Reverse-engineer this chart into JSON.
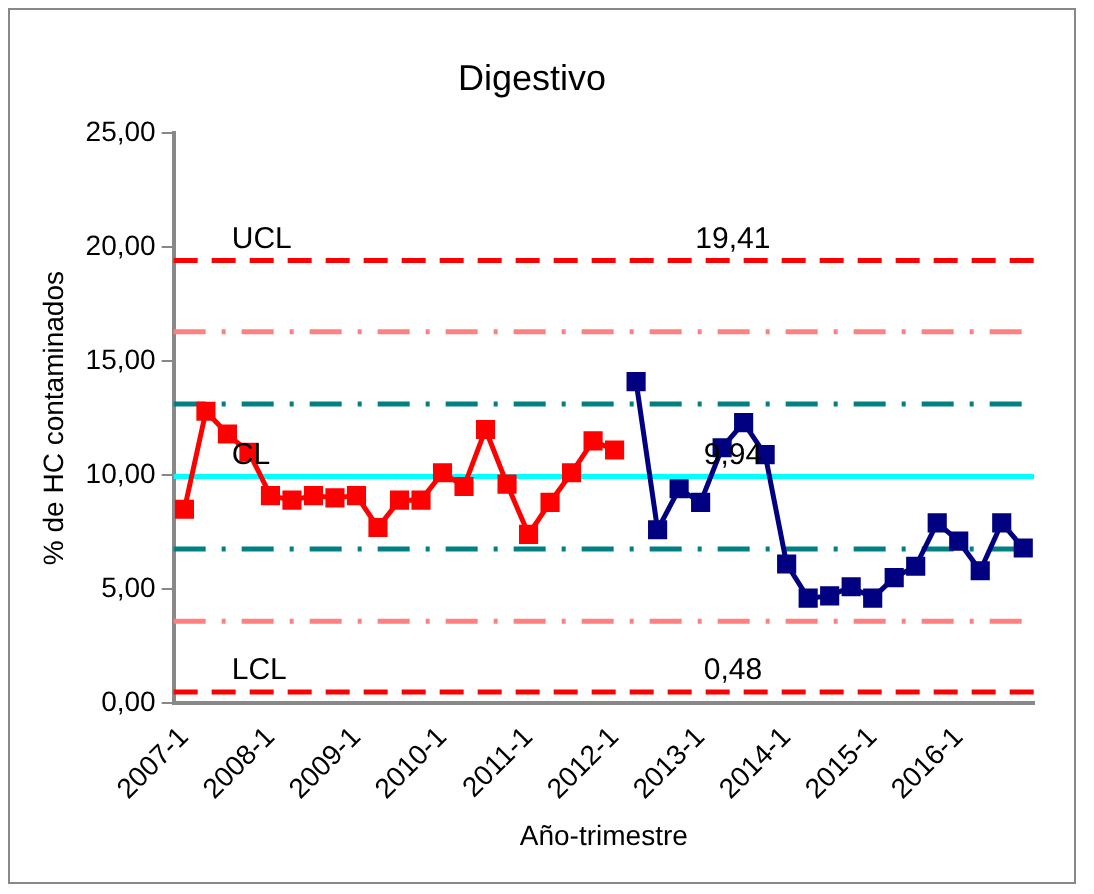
{
  "chart_data": {
    "type": "line",
    "title": "Digestivo",
    "xlabel": "Año-trimestre",
    "ylabel": "% de HC contaminados",
    "categories": [
      "2007-1",
      null,
      null,
      null,
      "2008-1",
      null,
      null,
      null,
      "2009-1",
      null,
      null,
      null,
      "2010-1",
      null,
      null,
      null,
      "2011-1",
      null,
      null,
      null,
      "2012-1",
      null,
      null,
      null,
      "2013-1",
      null,
      null,
      null,
      "2014-1",
      null,
      null,
      null,
      "2015-1",
      null,
      null,
      null,
      "2016-1",
      null,
      null,
      null
    ],
    "series": [
      {
        "color": "#ff0000",
        "values": [
          8.5,
          12.8,
          11.8,
          11.0,
          9.1,
          8.9,
          9.1,
          9.0,
          9.1,
          7.7,
          8.9,
          8.9,
          10.1,
          9.5,
          12.0,
          9.6,
          7.4,
          8.8,
          10.1,
          11.5,
          11.1,
          null,
          null,
          null,
          null,
          null,
          null,
          null,
          null,
          null,
          null,
          null,
          null,
          null,
          null,
          null,
          null,
          null,
          null,
          null
        ]
      },
      {
        "color": "#000080",
        "values": [
          null,
          null,
          null,
          null,
          null,
          null,
          null,
          null,
          null,
          null,
          null,
          null,
          null,
          null,
          null,
          null,
          null,
          null,
          null,
          null,
          null,
          14.1,
          7.6,
          9.4,
          8.8,
          11.2,
          12.3,
          10.9,
          6.1,
          4.6,
          4.7,
          5.1,
          4.6,
          5.5,
          6.0,
          7.9,
          7.1,
          5.8,
          7.9,
          6.8
        ]
      }
    ],
    "ylim": [
      0,
      25
    ],
    "yticks": [
      {
        "value": 0,
        "label": "0,00"
      },
      {
        "value": 5,
        "label": "5,00"
      },
      {
        "value": 10,
        "label": "10,00"
      },
      {
        "value": 15,
        "label": "15,00"
      },
      {
        "value": 20,
        "label": "20,00"
      },
      {
        "value": 25,
        "label": "25,00"
      }
    ],
    "ref_lines": [
      {
        "axis": "y",
        "value": 19.41,
        "label": "UCL",
        "color": "#ff0000",
        "line_style": "dashed"
      },
      {
        "axis": "y",
        "value": 16.29,
        "color": "#ff8080",
        "line_style": "dashdot"
      },
      {
        "axis": "y",
        "value": 13.12,
        "color": "#008080",
        "line_style": "dashdot"
      },
      {
        "axis": "y",
        "value": 9.94,
        "label": "CL",
        "color": "#00ffff",
        "line_style": "solid"
      },
      {
        "axis": "y",
        "value": 6.76,
        "color": "#008080",
        "line_style": "dashdot"
      },
      {
        "axis": "y",
        "value": 3.59,
        "color": "#ff8080",
        "line_style": "dashdot"
      },
      {
        "axis": "y",
        "value": 0.48,
        "label": "LCL",
        "color": "#ff0000",
        "line_style": "dashed"
      }
    ],
    "annotations": [
      {
        "text": "19,41",
        "y": 19.41
      },
      {
        "text": "9,94",
        "y": 9.94
      },
      {
        "text": "0,48",
        "y": 0.48
      }
    ],
    "grid": false,
    "legend": false,
    "marker": "square",
    "line_style": "solid"
  }
}
